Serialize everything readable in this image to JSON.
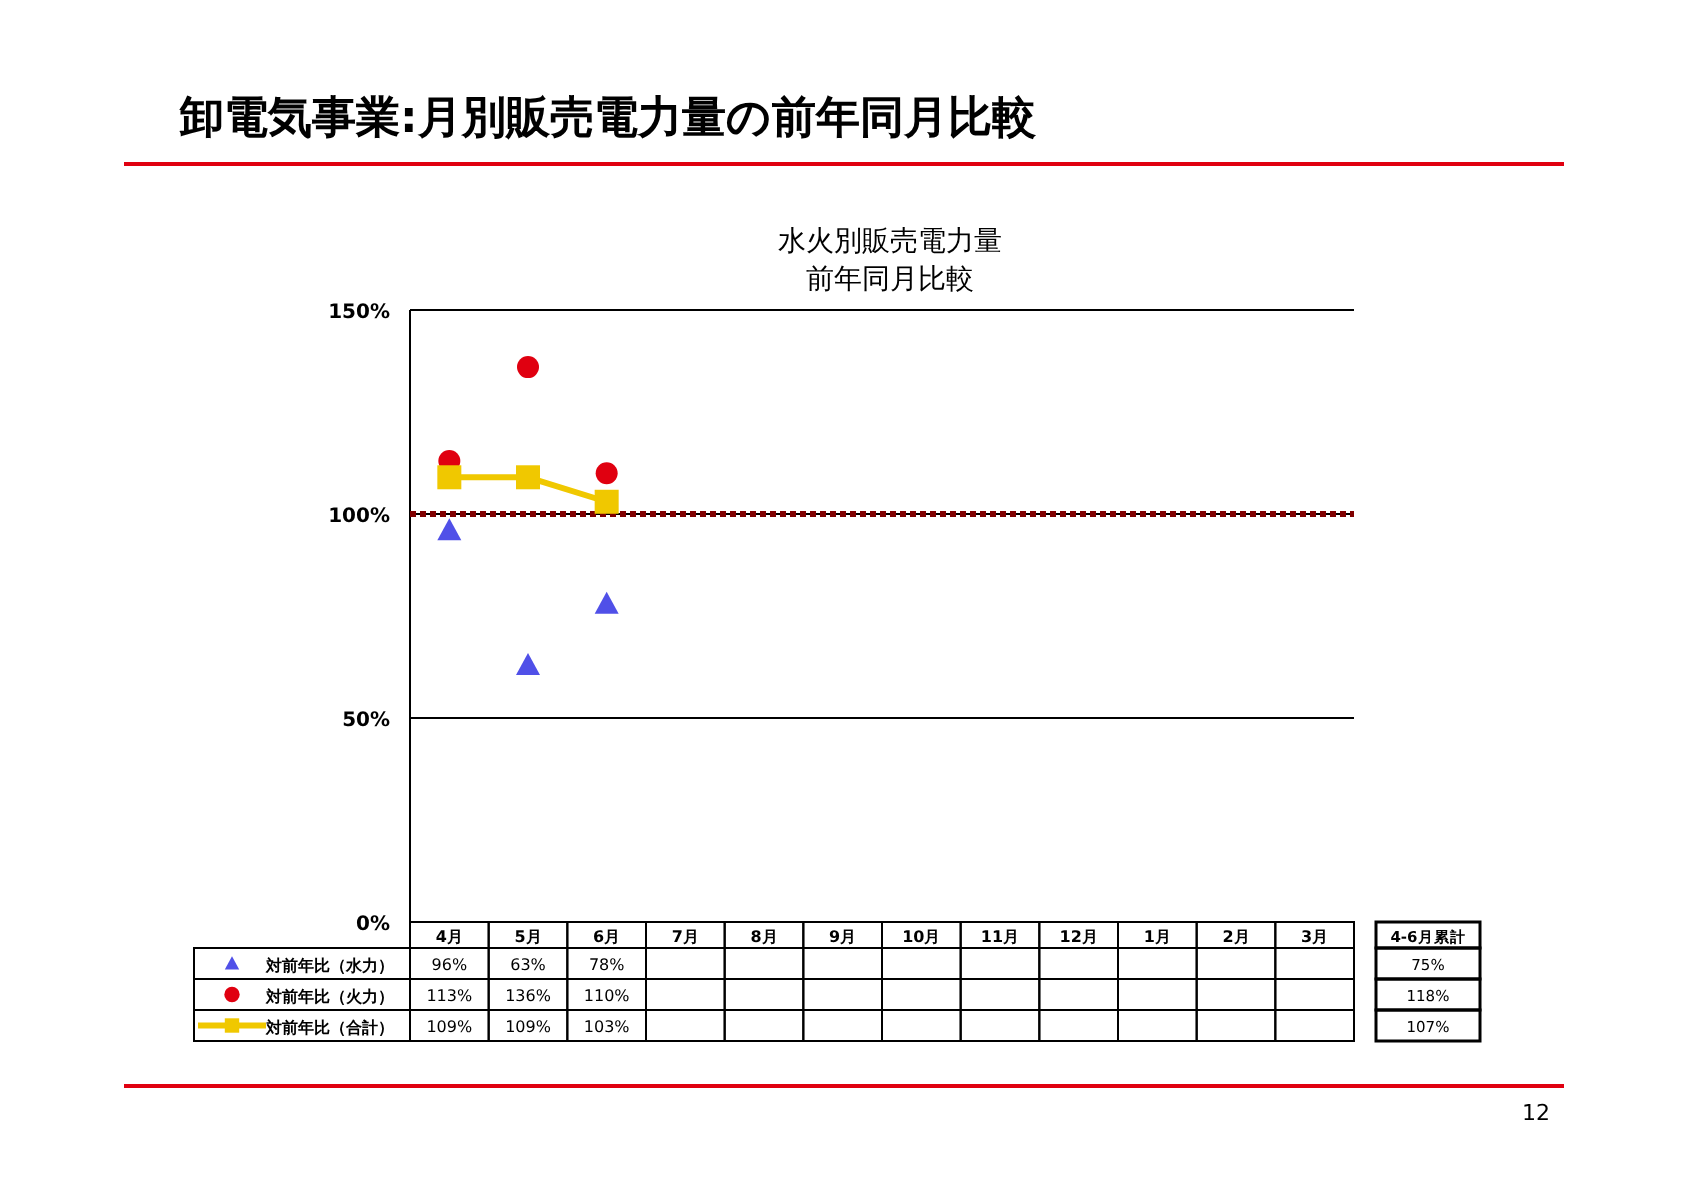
{
  "chart_data": {
    "type": "line",
    "title": "卸電気事業:月別販売電力量の前年同月比較",
    "subtitle": "水火別販売電力量",
    "annotations": [
      "前年同月比較",
      "4-6月累計",
      "75%",
      "118%",
      "107%",
      "12"
    ],
    "categories": [
      "4月",
      "5月",
      "6月",
      "7月",
      "8月",
      "9月",
      "10月",
      "11月",
      "12月",
      "1月",
      "2月",
      "3月"
    ],
    "series": [
      {
        "name": "対前年比（水力）",
        "type": "scatter",
        "marker": "triangle",
        "color": "#5050e8",
        "values": [
          96,
          63,
          78,
          null,
          null,
          null,
          null,
          null,
          null,
          null,
          null,
          null
        ],
        "value_labels": [
          "96%",
          "63%",
          "78%",
          null,
          null,
          null,
          null,
          null,
          null,
          null,
          null,
          null
        ]
      },
      {
        "name": "対前年比（火力）",
        "type": "scatter",
        "marker": "circle",
        "color": "#e00010",
        "values": [
          113,
          136,
          110,
          null,
          null,
          null,
          null,
          null,
          null,
          null,
          null,
          null
        ],
        "value_labels": [
          "113%",
          "136%",
          "110%",
          null,
          null,
          null,
          null,
          null,
          null,
          null,
          null,
          null
        ]
      },
      {
        "name": "対前年比（合計）",
        "type": "line",
        "marker": "square",
        "color": "#f0c800",
        "values": [
          109,
          109,
          103,
          null,
          null,
          null,
          null,
          null,
          null,
          null,
          null,
          null
        ],
        "value_labels": [
          "109%",
          "109%",
          "103%",
          null,
          null,
          null,
          null,
          null,
          null,
          null,
          null,
          null
        ]
      }
    ],
    "ylim": [
      0,
      150
    ],
    "yticks": [
      {
        "value": 0,
        "label": "0%"
      },
      {
        "value": 50,
        "label": "50%"
      },
      {
        "value": 100,
        "label": "100%"
      },
      {
        "value": 150,
        "label": "150%"
      }
    ],
    "grid": "y",
    "legend": "bottom",
    "ref_lines": [
      {
        "axis": "y",
        "value": 100,
        "color": "#800000",
        "line_style": "dotted"
      }
    ]
  }
}
